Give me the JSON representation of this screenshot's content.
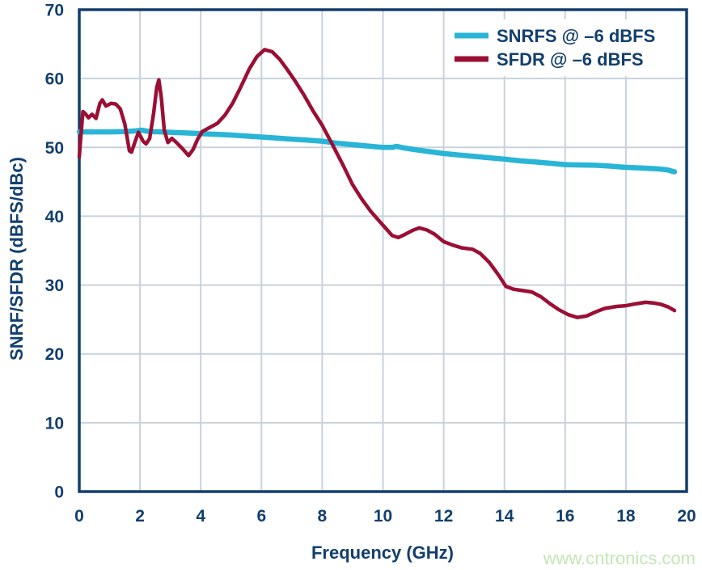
{
  "watermark": {
    "text": "www.cntronics.com",
    "color": "#c3e7b5"
  },
  "colors": {
    "axis_text": "#123f6d",
    "frame": "#123f6d",
    "grid": "#c8d2dd",
    "background": "#ffffff"
  },
  "chart_data": {
    "type": "line",
    "title": "",
    "xlabel": "Frequency (GHz)",
    "ylabel": "SNRF/SFDR (dBFS/dBc)",
    "xlim": [
      0,
      20
    ],
    "ylim": [
      0,
      70
    ],
    "xticks": [
      0,
      2,
      4,
      6,
      8,
      10,
      12,
      14,
      16,
      18,
      20
    ],
    "yticks": [
      0,
      10,
      20,
      30,
      40,
      50,
      60,
      70
    ],
    "grid": true,
    "legend_position": "top-right",
    "series": [
      {
        "name": "SNRFS",
        "legend_label": "SNRFS @ –6 dBFS",
        "color": "#29b5d6",
        "width": 6.5,
        "points": [
          [
            0,
            52.25
          ],
          [
            0.5,
            52.25
          ],
          [
            1,
            52.25
          ],
          [
            1.5,
            52.3
          ],
          [
            1.85,
            52.4
          ],
          [
            2.05,
            52.5
          ],
          [
            2.3,
            52.3
          ],
          [
            2.7,
            52.25
          ],
          [
            3,
            52.2
          ],
          [
            3.5,
            52.1
          ],
          [
            4,
            52.0
          ],
          [
            4.5,
            51.9
          ],
          [
            5,
            51.8
          ],
          [
            5.5,
            51.65
          ],
          [
            6,
            51.5
          ],
          [
            6.5,
            51.35
          ],
          [
            7,
            51.2
          ],
          [
            7.5,
            51.05
          ],
          [
            8,
            50.9
          ],
          [
            8.5,
            50.6
          ],
          [
            9,
            50.4
          ],
          [
            9.5,
            50.2
          ],
          [
            10,
            50.0
          ],
          [
            10.3,
            50.0
          ],
          [
            10.45,
            50.15
          ],
          [
            10.65,
            49.95
          ],
          [
            11,
            49.7
          ],
          [
            11.5,
            49.4
          ],
          [
            12,
            49.1
          ],
          [
            12.5,
            48.9
          ],
          [
            13,
            48.7
          ],
          [
            13.5,
            48.5
          ],
          [
            14,
            48.3
          ],
          [
            14.5,
            48.05
          ],
          [
            15,
            47.9
          ],
          [
            15.5,
            47.7
          ],
          [
            16,
            47.5
          ],
          [
            16.4,
            47.45
          ],
          [
            17,
            47.4
          ],
          [
            17.4,
            47.3
          ],
          [
            18,
            47.1
          ],
          [
            18.5,
            47.0
          ],
          [
            19,
            46.9
          ],
          [
            19.35,
            46.75
          ],
          [
            19.6,
            46.45
          ]
        ]
      },
      {
        "name": "SFDR",
        "legend_label": "SFDR @ –6 dBFS",
        "color": "#9b0f34",
        "width": 4.5,
        "points": [
          [
            0,
            48.6
          ],
          [
            0.05,
            51.5
          ],
          [
            0.12,
            55.2
          ],
          [
            0.2,
            54.9
          ],
          [
            0.3,
            54.3
          ],
          [
            0.42,
            54.8
          ],
          [
            0.55,
            54.2
          ],
          [
            0.68,
            56.4
          ],
          [
            0.76,
            56.9
          ],
          [
            0.88,
            56.0
          ],
          [
            1.05,
            56.4
          ],
          [
            1.2,
            56.3
          ],
          [
            1.35,
            55.6
          ],
          [
            1.5,
            53.4
          ],
          [
            1.65,
            49.5
          ],
          [
            1.72,
            49.3
          ],
          [
            1.85,
            51.0
          ],
          [
            1.95,
            52.2
          ],
          [
            2.1,
            50.9
          ],
          [
            2.2,
            50.5
          ],
          [
            2.32,
            51.3
          ],
          [
            2.45,
            55.0
          ],
          [
            2.55,
            58.7
          ],
          [
            2.62,
            59.8
          ],
          [
            2.7,
            57.3
          ],
          [
            2.8,
            52.5
          ],
          [
            2.92,
            50.7
          ],
          [
            3.05,
            51.3
          ],
          [
            3.2,
            50.7
          ],
          [
            3.4,
            49.8
          ],
          [
            3.6,
            48.8
          ],
          [
            3.75,
            49.7
          ],
          [
            3.9,
            51.2
          ],
          [
            4.05,
            52.3
          ],
          [
            4.3,
            52.9
          ],
          [
            4.55,
            53.5
          ],
          [
            4.8,
            54.7
          ],
          [
            5.05,
            56.4
          ],
          [
            5.3,
            58.6
          ],
          [
            5.6,
            61.4
          ],
          [
            5.85,
            63.2
          ],
          [
            6.1,
            64.2
          ],
          [
            6.35,
            63.9
          ],
          [
            6.6,
            62.8
          ],
          [
            6.85,
            61.3
          ],
          [
            7.1,
            59.7
          ],
          [
            7.4,
            57.6
          ],
          [
            7.7,
            55.3
          ],
          [
            8,
            53.2
          ],
          [
            8.35,
            50.3
          ],
          [
            8.7,
            47.3
          ],
          [
            9,
            44.6
          ],
          [
            9.3,
            42.5
          ],
          [
            9.6,
            40.7
          ],
          [
            9.9,
            39.2
          ],
          [
            10.1,
            38.2
          ],
          [
            10.3,
            37.2
          ],
          [
            10.5,
            36.9
          ],
          [
            10.7,
            37.3
          ],
          [
            11,
            38.0
          ],
          [
            11.2,
            38.3
          ],
          [
            11.45,
            38.0
          ],
          [
            11.7,
            37.4
          ],
          [
            12,
            36.3
          ],
          [
            12.3,
            35.8
          ],
          [
            12.6,
            35.4
          ],
          [
            12.95,
            35.2
          ],
          [
            13.2,
            34.6
          ],
          [
            13.5,
            33.3
          ],
          [
            13.8,
            31.5
          ],
          [
            14.05,
            29.8
          ],
          [
            14.3,
            29.4
          ],
          [
            14.6,
            29.2
          ],
          [
            14.9,
            29.0
          ],
          [
            15.2,
            28.3
          ],
          [
            15.5,
            27.3
          ],
          [
            15.8,
            26.4
          ],
          [
            16.1,
            25.7
          ],
          [
            16.4,
            25.3
          ],
          [
            16.7,
            25.5
          ],
          [
            17,
            26.1
          ],
          [
            17.3,
            26.6
          ],
          [
            17.7,
            26.9
          ],
          [
            18,
            27.0
          ],
          [
            18.35,
            27.3
          ],
          [
            18.65,
            27.5
          ],
          [
            18.9,
            27.4
          ],
          [
            19.15,
            27.2
          ],
          [
            19.4,
            26.8
          ],
          [
            19.6,
            26.3
          ]
        ]
      }
    ]
  }
}
